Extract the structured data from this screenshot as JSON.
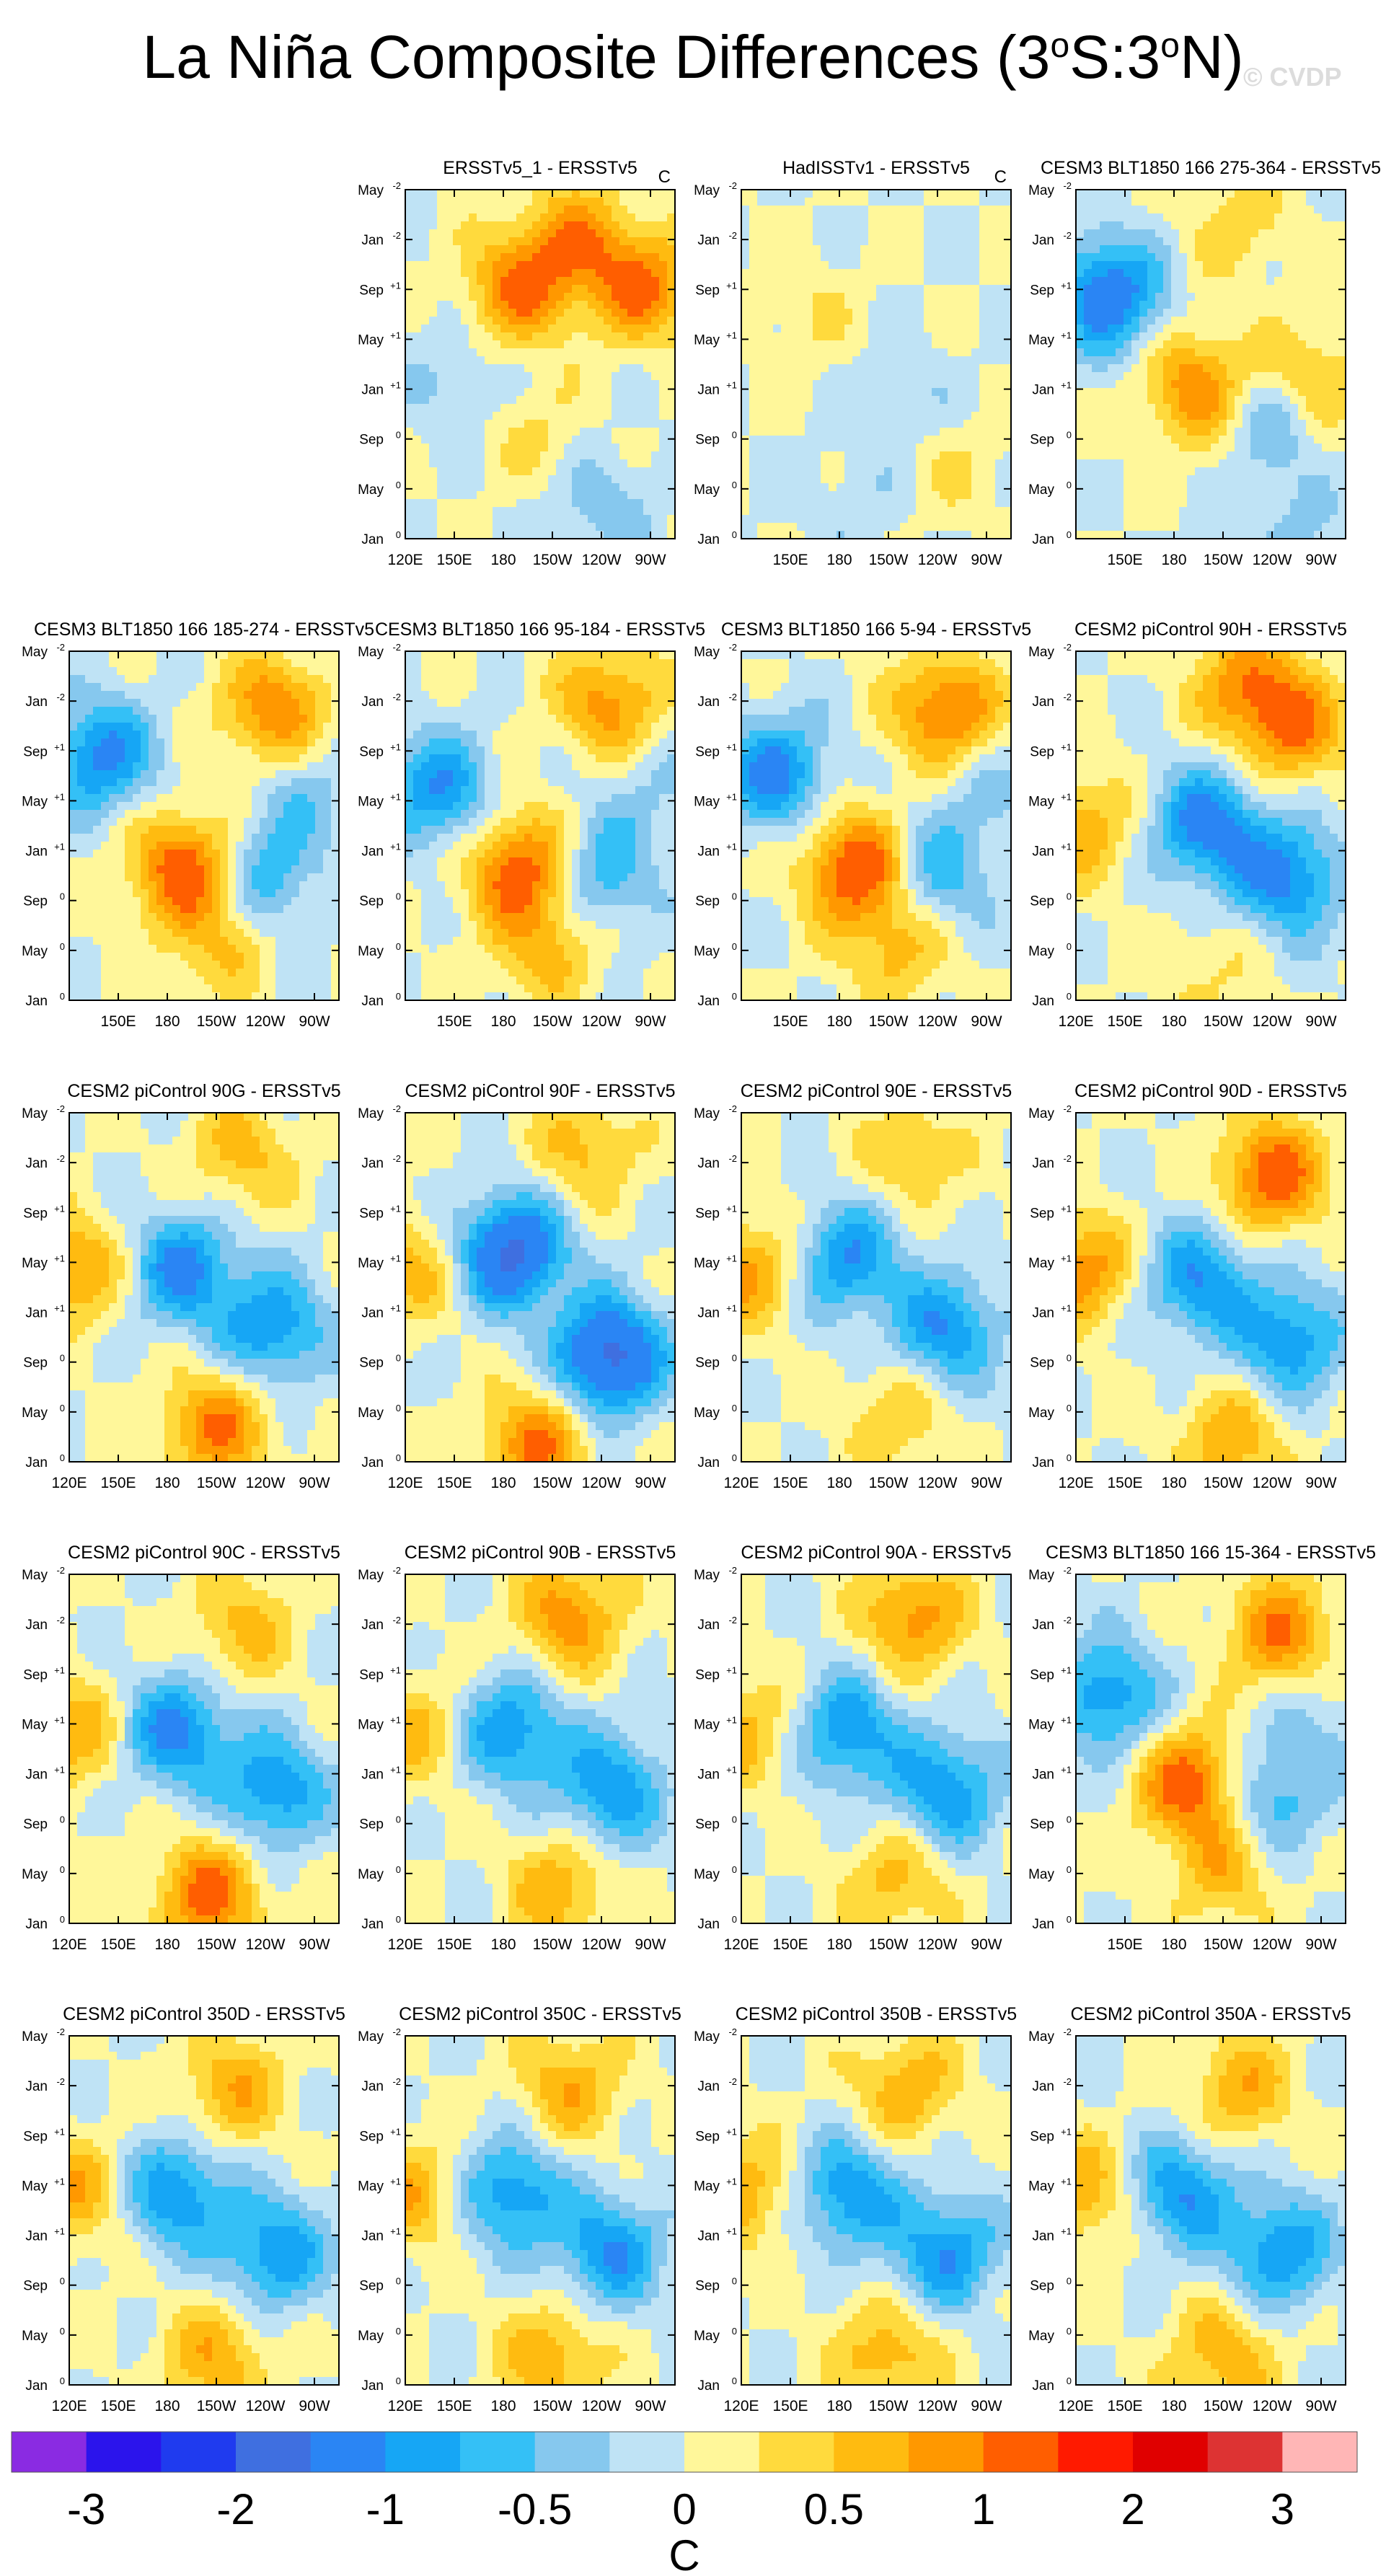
{
  "figure": {
    "title": "La Niña Composite Differences (3°S:3°N)",
    "title_parts": [
      "La Niña Composite Differences (3",
      "o",
      "S:3",
      "o",
      "N)"
    ],
    "watermark": "© CVDP"
  },
  "chart_data": {
    "type": "heatmap",
    "description_type": "Hovmöller longitude–time composite difference panels",
    "y_tick_labels": [
      {
        "text": "May",
        "sup": "-2"
      },
      {
        "text": "Jan",
        "sup": "-2"
      },
      {
        "text": "Sep",
        "sup": "+1"
      },
      {
        "text": "May",
        "sup": "+1"
      },
      {
        "text": "Jan",
        "sup": "+1"
      },
      {
        "text": "Sep",
        "sup": "0"
      },
      {
        "text": "May",
        "sup": "0"
      },
      {
        "text": "Jan",
        "sup": "0"
      }
    ],
    "x_tick_labels": [
      "120E",
      "150E",
      "180",
      "150W",
      "120W",
      "90W"
    ],
    "x_tick_lon": [
      120,
      150,
      180,
      210,
      240,
      270
    ],
    "xlim_lon": [
      120,
      285
    ],
    "colorbar": {
      "unit": "C",
      "levels": [
        -3,
        -2.5,
        -2,
        -1.5,
        -1,
        -0.75,
        -0.5,
        -0.25,
        0,
        0.25,
        0.5,
        0.75,
        1,
        1.5,
        2,
        2.5,
        3
      ],
      "labels": [
        "-3",
        "-2",
        "-1",
        "-0.5",
        "0",
        "0.5",
        "1",
        "2",
        "3"
      ],
      "colors": [
        "#8a2be2",
        "#2b14ec",
        "#1f3bef",
        "#3f6fe0",
        "#2a85f4",
        "#16a6f5",
        "#34c0f6",
        "#86c8ee",
        "#bfe3f5",
        "#fff79a",
        "#ffda3d",
        "#ffbb10",
        "#ff9800",
        "#ff5e00",
        "#ff1a00",
        "#e00000",
        "#dd3333",
        "#ffb6b6"
      ]
    },
    "panels": [
      {
        "title": "ERSSTv5_1 - ERSSTv5",
        "unit": "C",
        "x_labels": true,
        "features": [
          {
            "lon": 190,
            "t": 0.72,
            "v": 1.0
          },
          {
            "lon": 225,
            "t": 0.86,
            "v": 0.8
          },
          {
            "lon": 265,
            "t": 0.72,
            "v": 1.0
          },
          {
            "lon": 150,
            "t": 0.45,
            "v": -0.3
          },
          {
            "lon": 240,
            "t": 0.1,
            "v": -0.4
          },
          {
            "lon": 200,
            "t": 0.3,
            "v": 0.3
          }
        ]
      },
      {
        "title": "HadISSTv1 - ERSSTv5",
        "unit": "C",
        "x_labels": false,
        "features": [
          {
            "lon": 160,
            "t": 0.65,
            "v": 0.25
          },
          {
            "lon": 220,
            "t": 0.4,
            "v": -0.25
          },
          {
            "lon": 250,
            "t": 0.2,
            "v": 0.25
          },
          {
            "lon": 190,
            "t": 0.1,
            "v": -0.2
          }
        ]
      },
      {
        "title": "CESM3 BLT1850 166 275-364 - ERSSTv5",
        "unit": "",
        "x_labels": false,
        "features": [
          {
            "lon": 140,
            "t": 0.7,
            "v": -1.3
          },
          {
            "lon": 195,
            "t": 0.43,
            "v": 1.0
          },
          {
            "lon": 240,
            "t": 0.36,
            "v": -0.7
          },
          {
            "lon": 260,
            "t": 0.45,
            "v": 0.7
          },
          {
            "lon": 220,
            "t": 0.9,
            "v": 0.4
          },
          {
            "lon": 250,
            "t": 0.03,
            "v": -0.3
          }
        ]
      },
      {
        "title": "CESM3 BLT1850 166 185-274 - ERSSTv5",
        "unit": "",
        "x_labels": false,
        "features": [
          {
            "lon": 140,
            "t": 0.7,
            "v": -1.1
          },
          {
            "lon": 190,
            "t": 0.38,
            "v": 1.2
          },
          {
            "lon": 240,
            "t": 0.36,
            "v": -0.7
          },
          {
            "lon": 245,
            "t": 0.83,
            "v": 1.0
          },
          {
            "lon": 265,
            "t": 0.6,
            "v": -0.4
          },
          {
            "lon": 210,
            "t": 0.15,
            "v": 0.5
          }
        ]
      },
      {
        "title": "CESM3 BLT1850 166 95-184 - ERSSTv5",
        "unit": "",
        "x_labels": false,
        "features": [
          {
            "lon": 140,
            "t": 0.6,
            "v": -1.0
          },
          {
            "lon": 190,
            "t": 0.38,
            "v": 1.2
          },
          {
            "lon": 240,
            "t": 0.36,
            "v": -0.7
          },
          {
            "lon": 245,
            "t": 0.85,
            "v": 0.9
          },
          {
            "lon": 265,
            "t": 0.6,
            "v": -0.3
          },
          {
            "lon": 205,
            "t": 0.15,
            "v": 0.6
          }
        ]
      },
      {
        "title": "CESM3 BLT1850 166 5-94 - ERSSTv5",
        "unit": "",
        "x_labels": false,
        "features": [
          {
            "lon": 140,
            "t": 0.65,
            "v": -1.1
          },
          {
            "lon": 190,
            "t": 0.38,
            "v": 1.3
          },
          {
            "lon": 240,
            "t": 0.36,
            "v": -0.7
          },
          {
            "lon": 245,
            "t": 0.83,
            "v": 1.1
          },
          {
            "lon": 265,
            "t": 0.6,
            "v": -0.3
          },
          {
            "lon": 215,
            "t": 0.15,
            "v": 0.6
          }
        ]
      },
      {
        "title": "CESM2 piControl 90H - ERSSTv5",
        "unit": "",
        "x_labels": true,
        "features": [
          {
            "lon": 200,
            "t": 0.5,
            "v": -1.2
          },
          {
            "lon": 250,
            "t": 0.35,
            "v": -1.1
          },
          {
            "lon": 225,
            "t": 0.9,
            "v": 0.9
          },
          {
            "lon": 255,
            "t": 0.78,
            "v": 0.9
          },
          {
            "lon": 123,
            "t": 0.5,
            "v": 0.7
          },
          {
            "lon": 200,
            "t": 0.08,
            "v": 0.3
          }
        ]
      },
      {
        "title": "CESM2 piControl 90G - ERSSTv5",
        "unit": "",
        "x_labels": true,
        "features": [
          {
            "lon": 190,
            "t": 0.55,
            "v": -1.1
          },
          {
            "lon": 245,
            "t": 0.38,
            "v": -1.0
          },
          {
            "lon": 210,
            "t": 0.1,
            "v": 1.0
          },
          {
            "lon": 225,
            "t": 0.88,
            "v": 0.6
          },
          {
            "lon": 123,
            "t": 0.55,
            "v": 0.8
          }
        ]
      },
      {
        "title": "CESM2 piControl 90F - ERSSTv5",
        "unit": "",
        "x_labels": true,
        "features": [
          {
            "lon": 185,
            "t": 0.6,
            "v": -1.6
          },
          {
            "lon": 245,
            "t": 0.3,
            "v": -1.7
          },
          {
            "lon": 200,
            "t": 0.05,
            "v": 1.0
          },
          {
            "lon": 230,
            "t": 0.9,
            "v": 0.6
          },
          {
            "lon": 123,
            "t": 0.55,
            "v": 0.6
          }
        ]
      },
      {
        "title": "CESM2 piControl 90E - ERSSTv5",
        "unit": "",
        "x_labels": true,
        "features": [
          {
            "lon": 185,
            "t": 0.58,
            "v": -1.0
          },
          {
            "lon": 245,
            "t": 0.38,
            "v": -1.0
          },
          {
            "lon": 215,
            "t": 0.13,
            "v": 0.5
          },
          {
            "lon": 225,
            "t": 0.88,
            "v": 0.5
          },
          {
            "lon": 123,
            "t": 0.55,
            "v": 0.8
          }
        ]
      },
      {
        "title": "CESM2 piControl 90D - ERSSTv5",
        "unit": "",
        "x_labels": true,
        "features": [
          {
            "lon": 195,
            "t": 0.52,
            "v": -1.0
          },
          {
            "lon": 250,
            "t": 0.35,
            "v": -1.0
          },
          {
            "lon": 240,
            "t": 0.82,
            "v": 1.2
          },
          {
            "lon": 215,
            "t": 0.06,
            "v": 0.7
          },
          {
            "lon": 123,
            "t": 0.55,
            "v": 0.9
          }
        ]
      },
      {
        "title": "CESM2 piControl 90C - ERSSTv5",
        "unit": "",
        "x_labels": true,
        "features": [
          {
            "lon": 185,
            "t": 0.55,
            "v": -1.1
          },
          {
            "lon": 245,
            "t": 0.38,
            "v": -1.0
          },
          {
            "lon": 205,
            "t": 0.08,
            "v": 1.1
          },
          {
            "lon": 225,
            "t": 0.85,
            "v": 0.6
          },
          {
            "lon": 123,
            "t": 0.55,
            "v": 0.7
          }
        ]
      },
      {
        "title": "CESM2 piControl 90B - ERSSTv5",
        "unit": "",
        "x_labels": true,
        "features": [
          {
            "lon": 185,
            "t": 0.55,
            "v": -1.0
          },
          {
            "lon": 245,
            "t": 0.38,
            "v": -1.0
          },
          {
            "lon": 215,
            "t": 0.1,
            "v": 0.7
          },
          {
            "lon": 220,
            "t": 0.88,
            "v": 0.9
          },
          {
            "lon": 123,
            "t": 0.55,
            "v": 0.6
          }
        ]
      },
      {
        "title": "CESM2 piControl 90A - ERSSTv5",
        "unit": "",
        "x_labels": true,
        "features": [
          {
            "lon": 185,
            "t": 0.55,
            "v": -1.0
          },
          {
            "lon": 245,
            "t": 0.38,
            "v": -1.0
          },
          {
            "lon": 215,
            "t": 0.12,
            "v": 0.6
          },
          {
            "lon": 225,
            "t": 0.88,
            "v": 0.9
          },
          {
            "lon": 123,
            "t": 0.55,
            "v": 0.6
          }
        ]
      },
      {
        "title": "CESM3 BLT1850 166 15-364 - ERSSTv5",
        "unit": "",
        "x_labels": false,
        "features": [
          {
            "lon": 140,
            "t": 0.65,
            "v": -1.0
          },
          {
            "lon": 190,
            "t": 0.4,
            "v": 1.2
          },
          {
            "lon": 240,
            "t": 0.36,
            "v": -0.7
          },
          {
            "lon": 245,
            "t": 0.83,
            "v": 1.0
          },
          {
            "lon": 265,
            "t": 0.6,
            "v": -0.3
          },
          {
            "lon": 210,
            "t": 0.15,
            "v": 0.6
          }
        ]
      },
      {
        "title": "CESM2 piControl 350D - ERSSTv5",
        "unit": "",
        "x_labels": true,
        "features": [
          {
            "lon": 185,
            "t": 0.55,
            "v": -1.0
          },
          {
            "lon": 245,
            "t": 0.38,
            "v": -1.0
          },
          {
            "lon": 210,
            "t": 0.08,
            "v": 0.7
          },
          {
            "lon": 220,
            "t": 0.85,
            "v": 0.7
          },
          {
            "lon": 123,
            "t": 0.55,
            "v": 0.7
          }
        ]
      },
      {
        "title": "CESM2 piControl 350C - ERSSTv5",
        "unit": "",
        "x_labels": true,
        "features": [
          {
            "lon": 185,
            "t": 0.55,
            "v": -1.0
          },
          {
            "lon": 245,
            "t": 0.38,
            "v": -1.0
          },
          {
            "lon": 210,
            "t": 0.08,
            "v": 0.7
          },
          {
            "lon": 220,
            "t": 0.85,
            "v": 0.7
          },
          {
            "lon": 123,
            "t": 0.55,
            "v": 0.7
          }
        ]
      },
      {
        "title": "CESM2 piControl 350B - ERSSTv5",
        "unit": "",
        "x_labels": true,
        "features": [
          {
            "lon": 185,
            "t": 0.55,
            "v": -1.0
          },
          {
            "lon": 245,
            "t": 0.38,
            "v": -1.0
          },
          {
            "lon": 210,
            "t": 0.08,
            "v": 0.7
          },
          {
            "lon": 220,
            "t": 0.85,
            "v": 0.7
          },
          {
            "lon": 123,
            "t": 0.55,
            "v": 0.7
          }
        ]
      },
      {
        "title": "CESM2 piControl 350A - ERSSTv5",
        "unit": "",
        "x_labels": true,
        "features": [
          {
            "lon": 185,
            "t": 0.55,
            "v": -1.0
          },
          {
            "lon": 245,
            "t": 0.38,
            "v": -1.0
          },
          {
            "lon": 210,
            "t": 0.08,
            "v": 0.7
          },
          {
            "lon": 220,
            "t": 0.85,
            "v": 0.7
          },
          {
            "lon": 123,
            "t": 0.55,
            "v": 0.7
          }
        ]
      }
    ]
  }
}
